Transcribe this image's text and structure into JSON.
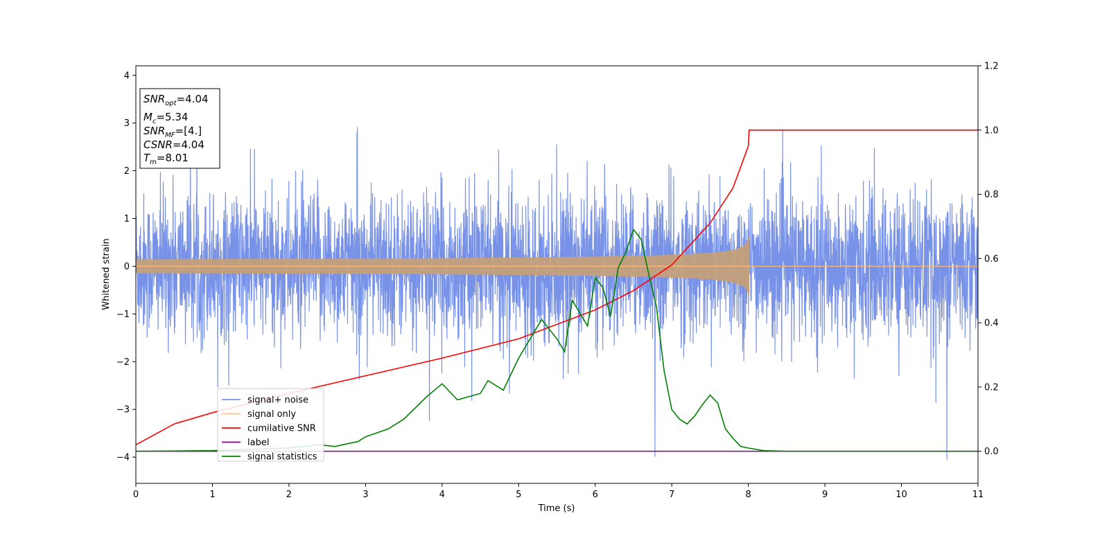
{
  "chart_data": {
    "type": "line",
    "xlabel": "Time (s)",
    "ylabel": "Whitened strain",
    "xlim": [
      0,
      11
    ],
    "ylim_left": [
      -4.55,
      4.2
    ],
    "ylim_right": [
      -0.1,
      1.2
    ],
    "xticks": [
      "0",
      "1",
      "2",
      "3",
      "4",
      "5",
      "6",
      "7",
      "8",
      "9",
      "10",
      "11"
    ],
    "yticks_left": [
      "4",
      "3",
      "2",
      "1",
      "0",
      "−1",
      "−2",
      "−3",
      "−4"
    ],
    "yticks_right": [
      "1.2",
      "1.0",
      "0.8",
      "0.6",
      "0.4",
      "0.2",
      "0.0"
    ],
    "grid": false,
    "legend_position": "lower-left",
    "info_box": {
      "snr_opt": {
        "base": "SNR",
        "sub": "opt",
        "value": "=4.04"
      },
      "mc": {
        "base": "M",
        "sub": "c",
        "value": "=5.34"
      },
      "snr_mf": {
        "base": "SNR",
        "sub": "MF",
        "value": "=[4.]"
      },
      "csnr": {
        "base": "CSNR",
        "value": "=4.04"
      },
      "tm": {
        "base": "T",
        "sub": "m",
        "value": "=8.01"
      }
    },
    "series": [
      {
        "name": "signal+ noise",
        "color": "#7892e8",
        "axis": "left",
        "kind": "noise",
        "std": 1.0,
        "t_end": 11
      },
      {
        "name": "signal only",
        "color": "#ffbf80",
        "axis": "left",
        "kind": "chirp",
        "t_merge": 8.01,
        "peak_amplitude": 0.37
      },
      {
        "name": "cumilative SNR",
        "color": "#ff0000",
        "axis": "right",
        "x": [
          0,
          0.5,
          1,
          2,
          3,
          4,
          5,
          6,
          6.5,
          7,
          7.5,
          7.8,
          8.0,
          8.01,
          11
        ],
        "y": [
          0.02,
          0.085,
          0.12,
          0.18,
          0.235,
          0.29,
          0.35,
          0.44,
          0.5,
          0.58,
          0.71,
          0.82,
          0.95,
          1.0,
          1.0
        ]
      },
      {
        "name": "label",
        "color": "#800080",
        "axis": "right",
        "x": [
          0,
          11
        ],
        "y": [
          0,
          0
        ]
      },
      {
        "name": "signal statistics",
        "color": "#008000",
        "axis": "right",
        "x": [
          0,
          1,
          2,
          2.4,
          2.6,
          2.7,
          2.9,
          3.0,
          3.3,
          3.5,
          3.8,
          4.0,
          4.2,
          4.5,
          4.6,
          4.8,
          5.0,
          5.2,
          5.3,
          5.5,
          5.6,
          5.7,
          5.9,
          6.0,
          6.1,
          6.2,
          6.3,
          6.4,
          6.5,
          6.6,
          6.7,
          6.8,
          6.9,
          7.0,
          7.1,
          7.2,
          7.3,
          7.4,
          7.5,
          7.6,
          7.7,
          7.8,
          7.9,
          8.0,
          8.2,
          8.5,
          11
        ],
        "y": [
          0,
          0.002,
          0.01,
          0.02,
          0.015,
          0.02,
          0.03,
          0.045,
          0.07,
          0.1,
          0.17,
          0.21,
          0.16,
          0.18,
          0.22,
          0.19,
          0.29,
          0.37,
          0.41,
          0.35,
          0.31,
          0.47,
          0.39,
          0.54,
          0.51,
          0.42,
          0.57,
          0.62,
          0.69,
          0.66,
          0.55,
          0.45,
          0.25,
          0.13,
          0.1,
          0.085,
          0.11,
          0.145,
          0.175,
          0.15,
          0.07,
          0.04,
          0.015,
          0.01,
          0.002,
          0,
          0
        ]
      }
    ]
  }
}
